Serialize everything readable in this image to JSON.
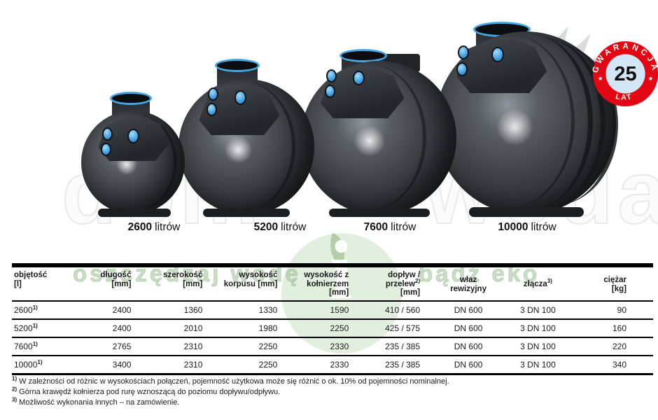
{
  "watermark": {
    "left": "dom",
    "right": "woda",
    "logo_letter": "i",
    "tagline_left": "oszczędzaj wodę",
    "tagline_right": "bądź eko"
  },
  "badge": {
    "top_text": "GWARANCJA",
    "value": "25",
    "bottom_text": "LAT",
    "star": "★"
  },
  "products": [
    {
      "value": "2600",
      "unit": "litrów"
    },
    {
      "value": "5200",
      "unit": "litrów"
    },
    {
      "value": "7600",
      "unit": "litrów"
    },
    {
      "value": "10000",
      "unit": "litrów"
    }
  ],
  "table": {
    "headers": [
      {
        "lines": [
          "objętość",
          "[l]"
        ],
        "align": "left"
      },
      {
        "lines": [
          "długość",
          "[mm]"
        ],
        "align": "right"
      },
      {
        "lines": [
          "szerokość",
          "[mm]"
        ],
        "align": "right"
      },
      {
        "lines": [
          "wysokość",
          "korpusu [mm]"
        ],
        "align": "right"
      },
      {
        "lines": [
          "wysokość z",
          "kołnierzem",
          "[mm]"
        ],
        "align": "right"
      },
      {
        "lines": [
          "dopływ /",
          "przelew|2)",
          "[mm]"
        ],
        "align": "right"
      },
      {
        "lines": [
          "właz",
          "rewizyjny"
        ],
        "align": "center"
      },
      {
        "lines": [
          "złącza|3)"
        ],
        "align": "center"
      },
      {
        "lines": [
          "ciężar",
          "[kg]"
        ],
        "align": "right"
      }
    ],
    "rows": [
      {
        "label": "2600|1)",
        "cells": [
          "2400",
          "1360",
          "1330",
          "1590",
          "410 / 560",
          "DN 600",
          "3 DN 100",
          "90"
        ]
      },
      {
        "label": "5200|1)",
        "cells": [
          "2400",
          "2010",
          "1980",
          "2250",
          "425 / 575",
          "DN 600",
          "3 DN 100",
          "160"
        ]
      },
      {
        "label": "7600|1)",
        "cells": [
          "2765",
          "2310",
          "2250",
          "2330",
          "235 / 385",
          "DN 600",
          "3 DN 100",
          "220"
        ]
      },
      {
        "label": "10000|1)",
        "cells": [
          "3400",
          "2310",
          "2250",
          "2330",
          "235 / 385",
          "DN 600",
          "3 DN 100",
          "340"
        ]
      }
    ]
  },
  "footnotes": [
    {
      "sup": "1)",
      "text": "W zależności od różnic w wysokościach połączeń, pojemność użytkowa może się różnić o ok. 10% od pojemności nominalnej."
    },
    {
      "sup": "2)",
      "text": "Górna krawędź kołnierza pod rurę wznoszącą do poziomu dopływu/odpływu."
    },
    {
      "sup": "3)",
      "text": "Możliwość wykonania innych – na zamówienie."
    }
  ],
  "colors": {
    "accent_blue": "#45a7e3",
    "badge_red": "#e30613",
    "badge_inner": "#d3e6f5",
    "tank_dark": "#2e3136",
    "watermark_green": "#9ec296"
  }
}
